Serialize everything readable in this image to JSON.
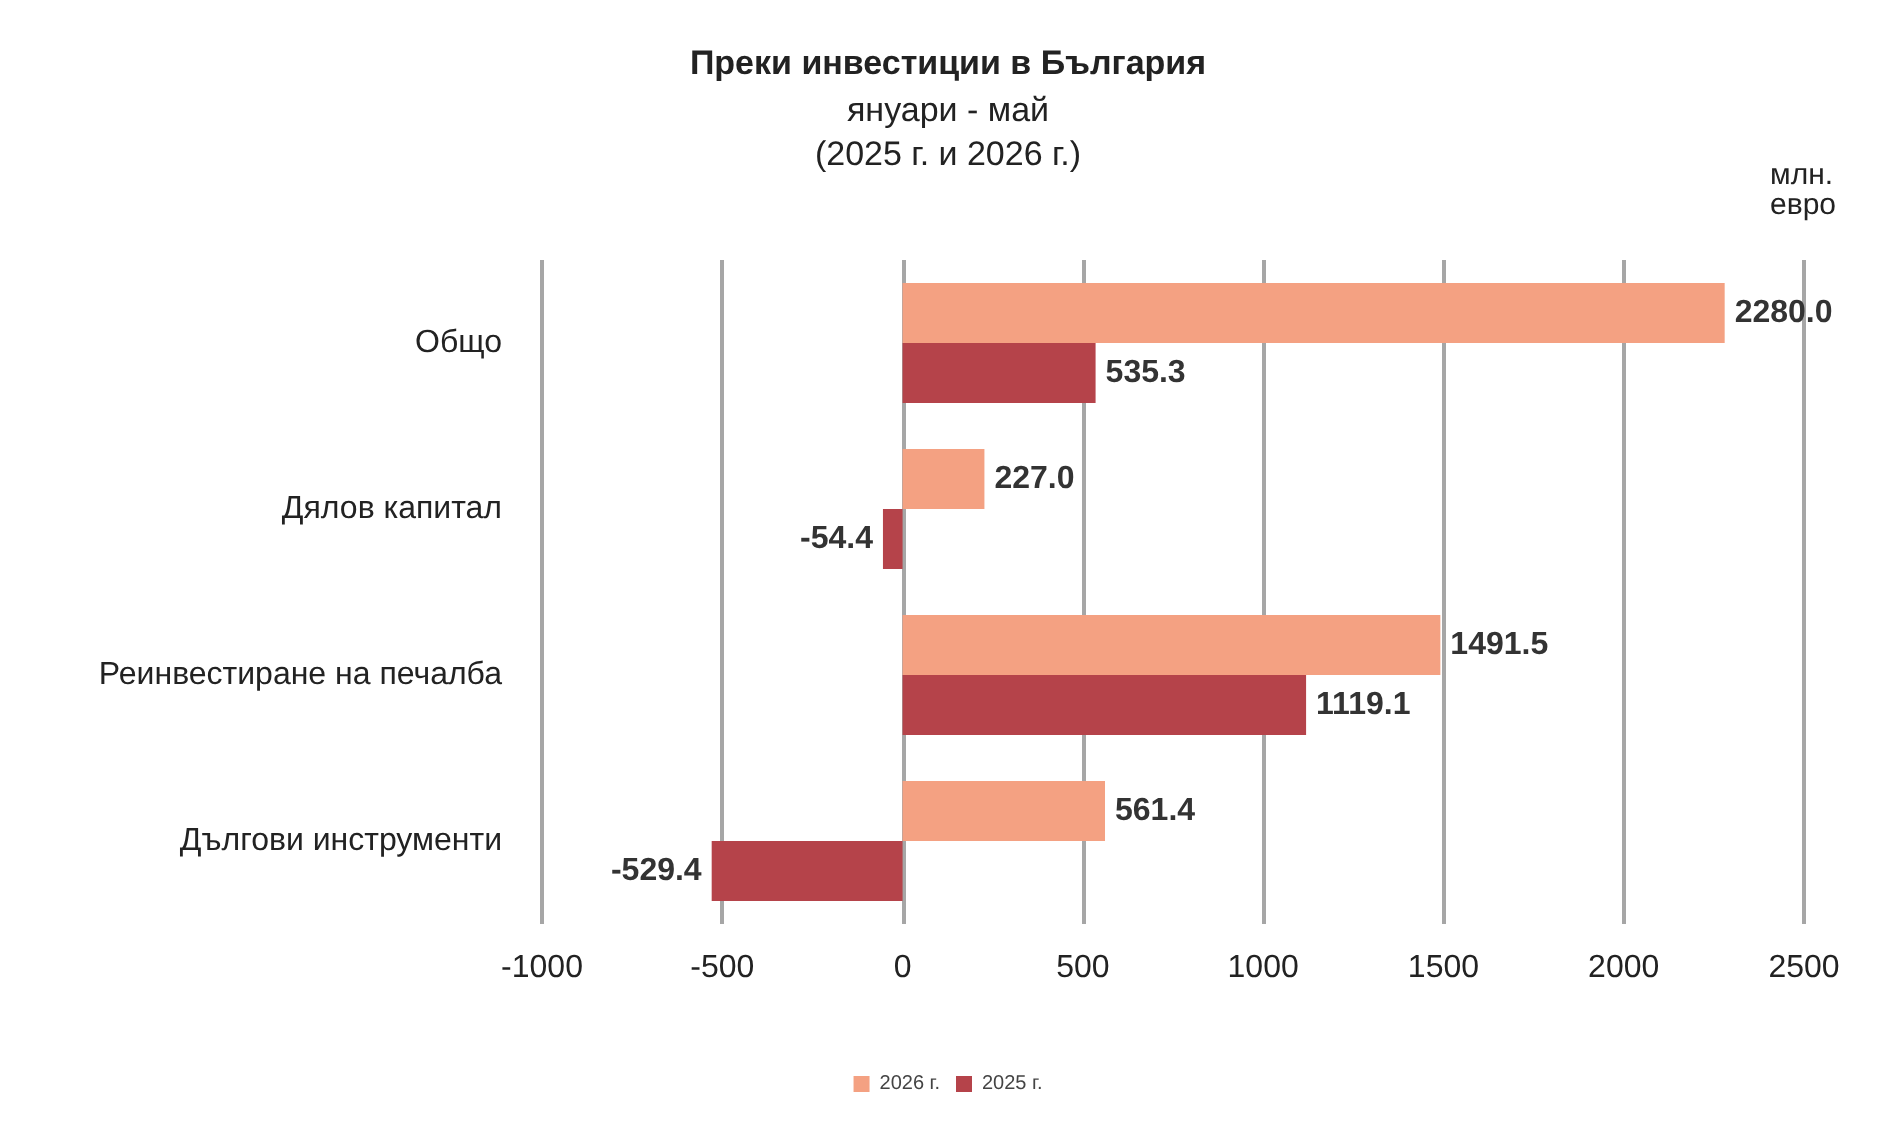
{
  "chart_data": {
    "type": "bar",
    "orientation": "horizontal",
    "title": "Преки инвестиции в България",
    "subtitle": "януари - май\n(2025 г. и 2026 г.)",
    "xlabel": "млн.\nевро",
    "categories": [
      "Общо",
      "Дялов капитал",
      "Реинвестиране на печалба",
      "Дългови инструменти"
    ],
    "series": [
      {
        "name": "2026 г.",
        "color": "#f4a182",
        "values": [
          2280.0,
          227.0,
          1491.5,
          561.4
        ],
        "value_labels": [
          "2280.0",
          "227.0",
          "1491.5",
          "561.4"
        ]
      },
      {
        "name": "2025 г.",
        "color": "#b5434a",
        "values": [
          535.3,
          -54.4,
          1119.1,
          -529.4
        ],
        "value_labels": [
          "535.3",
          "-54.4",
          "1119.1",
          "-529.4"
        ]
      }
    ],
    "xlim": [
      -1000,
      2500
    ],
    "xticks": [
      -1000,
      -500,
      0,
      500,
      1000,
      1500,
      2000,
      2500
    ],
    "grid": "x",
    "legend": "bottom"
  }
}
